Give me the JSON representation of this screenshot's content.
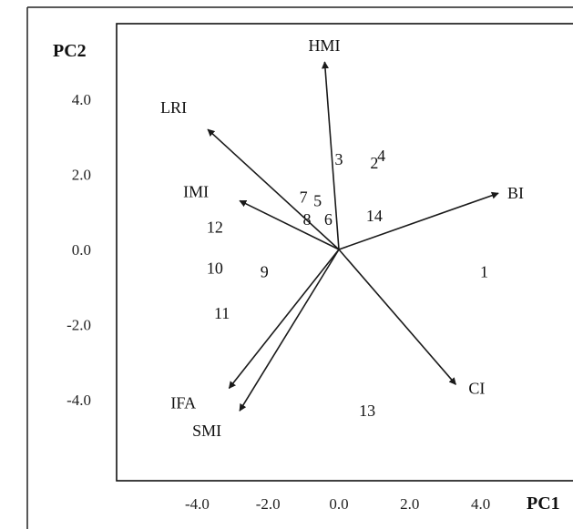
{
  "chart_data": {
    "type": "scatter",
    "subtype": "pca-biplot",
    "title": "",
    "xlabel": "PC1",
    "ylabel": "PC2",
    "xlim": [
      -5.3,
      5.4
    ],
    "ylim": [
      -6.5,
      5.4
    ],
    "grid": false,
    "legend": "none",
    "x_ticks": [
      {
        "value": -4,
        "label": "-4.0"
      },
      {
        "value": -2,
        "label": "-2.0"
      },
      {
        "value": 0,
        "label": "0.0"
      },
      {
        "value": 2,
        "label": "2.0"
      },
      {
        "value": 4,
        "label": "4.0"
      }
    ],
    "y_ticks": [
      {
        "value": 4,
        "label": "4.0"
      },
      {
        "value": 2,
        "label": "2.0"
      },
      {
        "value": 0,
        "label": "0.0"
      },
      {
        "value": -2,
        "label": "-2.0"
      },
      {
        "value": -4,
        "label": "-4.0"
      }
    ],
    "vectors": [
      {
        "label": "HMI",
        "x": -0.4,
        "y": 5.0
      },
      {
        "label": "LRI",
        "x": -3.7,
        "y": 3.2
      },
      {
        "label": "IMI",
        "x": -2.8,
        "y": 1.3
      },
      {
        "label": "BI",
        "x": 4.5,
        "y": 1.5
      },
      {
        "label": "CI",
        "x": 3.3,
        "y": -3.6
      },
      {
        "label": "IFA",
        "x": -3.1,
        "y": -3.7
      },
      {
        "label": "SMI",
        "x": -2.8,
        "y": -4.3
      }
    ],
    "observations": [
      {
        "label": "1",
        "x": 4.1,
        "y": -0.6
      },
      {
        "label": "2",
        "x": 1.0,
        "y": 2.3
      },
      {
        "label": "3",
        "x": 0.0,
        "y": 2.4
      },
      {
        "label": "4",
        "x": 1.2,
        "y": 2.5
      },
      {
        "label": "5",
        "x": -0.6,
        "y": 1.3
      },
      {
        "label": "6",
        "x": -0.3,
        "y": 0.8
      },
      {
        "label": "7",
        "x": -1.0,
        "y": 1.4
      },
      {
        "label": "8",
        "x": -0.9,
        "y": 0.8
      },
      {
        "label": "9",
        "x": -2.1,
        "y": -0.6
      },
      {
        "label": "10",
        "x": -3.5,
        "y": -0.5
      },
      {
        "label": "11",
        "x": -3.3,
        "y": -1.7
      },
      {
        "label": "12",
        "x": -3.5,
        "y": 0.6
      },
      {
        "label": "13",
        "x": 0.8,
        "y": -4.3
      },
      {
        "label": "14",
        "x": 1.0,
        "y": 0.9
      }
    ],
    "colors": {
      "arrow": "#1a1a1a",
      "frame": "#111111",
      "text": "#111111"
    }
  }
}
